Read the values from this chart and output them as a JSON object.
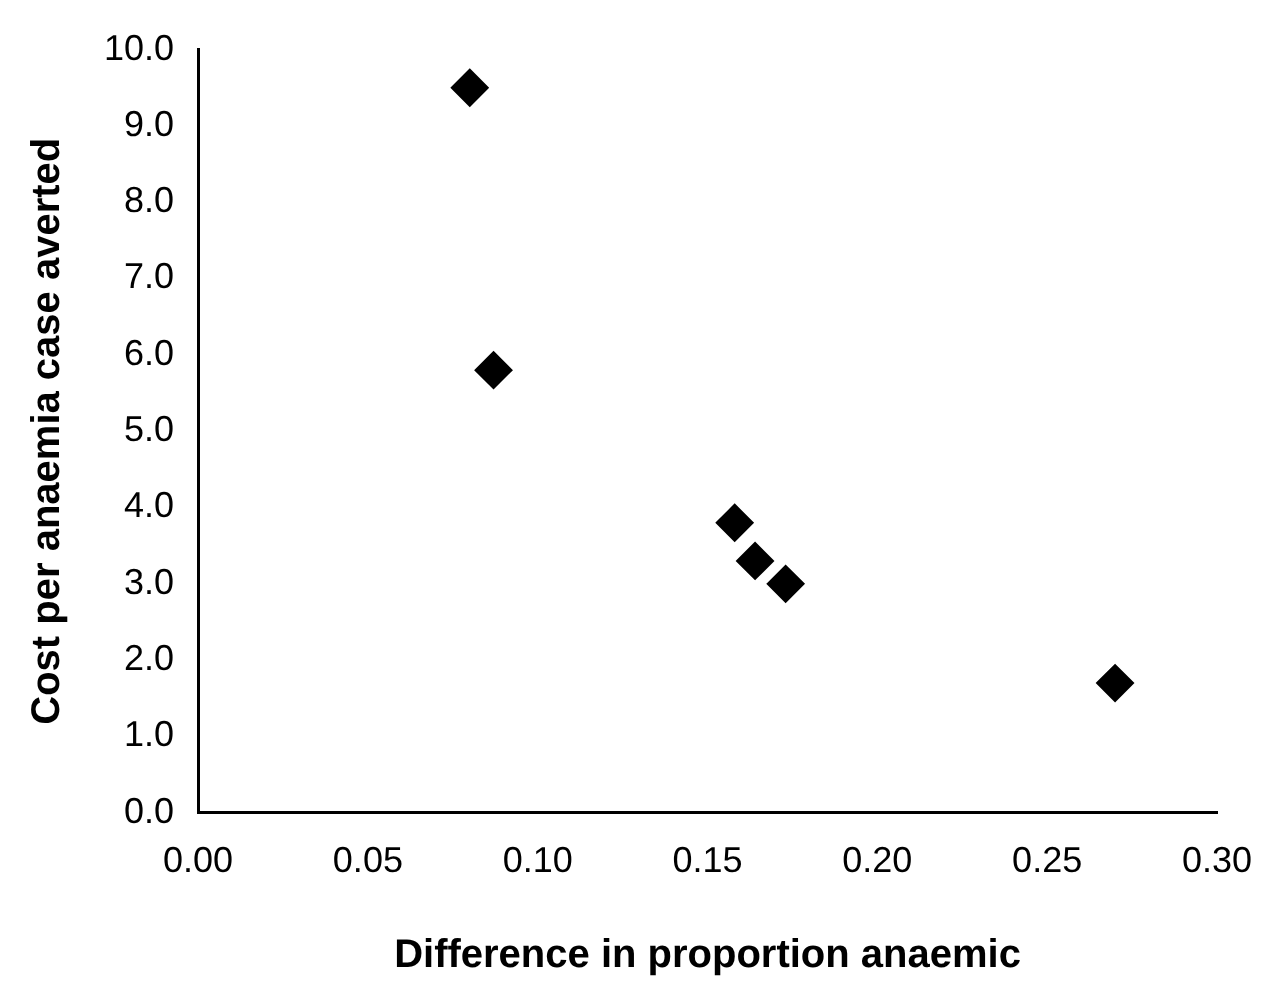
{
  "chart_data": {
    "type": "scatter",
    "xlabel": "Difference in proportion anaemic",
    "ylabel": "Cost per anaemia case averted",
    "x": [
      0.08,
      0.087,
      0.158,
      0.164,
      0.173,
      0.27
    ],
    "series": [
      {
        "color": "#000000",
        "values": [
          9.5,
          5.8,
          3.8,
          3.3,
          3.0,
          1.7
        ]
      }
    ],
    "xlim": [
      0,
      0.3
    ],
    "xticks": [
      {
        "value": 0,
        "label": "0.00"
      },
      {
        "value": 0.05,
        "label": "0.05"
      },
      {
        "value": 0.1,
        "label": "0.10"
      },
      {
        "value": 0.15,
        "label": "0.15"
      },
      {
        "value": 0.2,
        "label": "0.20"
      },
      {
        "value": 0.25,
        "label": "0.25"
      },
      {
        "value": 0.3,
        "label": "0.30"
      }
    ],
    "ylim": [
      0,
      10
    ],
    "yticks": [
      {
        "value": 0,
        "label": "0.0"
      },
      {
        "value": 1,
        "label": "1.0"
      },
      {
        "value": 2,
        "label": "2.0"
      },
      {
        "value": 3,
        "label": "3.0"
      },
      {
        "value": 4,
        "label": "4.0"
      },
      {
        "value": 5,
        "label": "5.0"
      },
      {
        "value": 6,
        "label": "6.0"
      },
      {
        "value": 7,
        "label": "7.0"
      },
      {
        "value": 8,
        "label": "8.0"
      },
      {
        "value": 9,
        "label": "9.0"
      },
      {
        "value": 10,
        "label": "10.0"
      }
    ],
    "grid": false,
    "legend": false,
    "marker": "diamond"
  }
}
